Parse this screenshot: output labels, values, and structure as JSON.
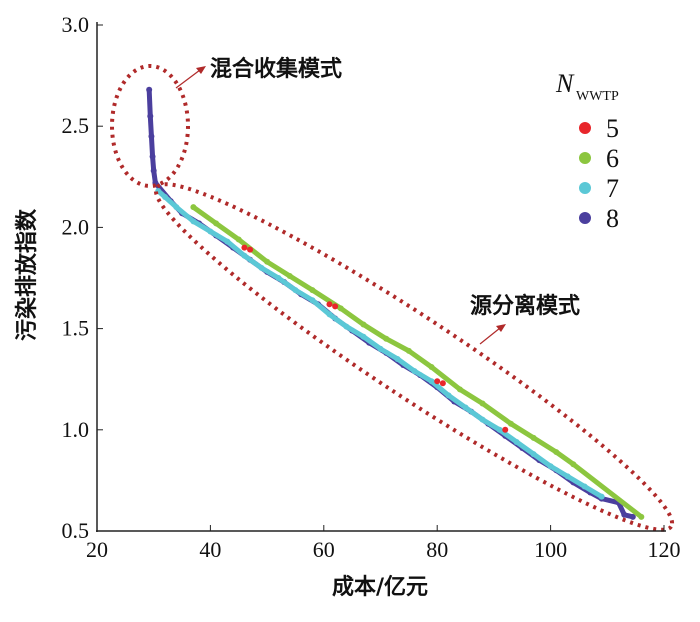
{
  "chart_data": {
    "type": "scatter",
    "title": "",
    "xlabel": "成本/亿元",
    "ylabel": "污染排放指数",
    "xlim": [
      20,
      120
    ],
    "ylim": [
      0.5,
      3.0
    ],
    "xticks": [
      "20",
      "40",
      "60",
      "80",
      "100",
      "120"
    ],
    "yticks": [
      "0.5",
      "1.0",
      "1.5",
      "2.0",
      "2.5",
      "3.0"
    ],
    "legend": {
      "title": "N",
      "title_sub": "WWTP",
      "placement": "top-right"
    },
    "annotations": [
      "混合收集模式",
      "源分离模式"
    ],
    "series": [
      {
        "name": "8",
        "color": "#4b3f9e",
        "points": [
          [
            29.2,
            2.68
          ],
          [
            29.4,
            2.55
          ],
          [
            29.6,
            2.45
          ],
          [
            29.8,
            2.35
          ],
          [
            30,
            2.28
          ],
          [
            30.3,
            2.22
          ],
          [
            33,
            2.13
          ],
          [
            35,
            2.07
          ],
          [
            38,
            2.02
          ],
          [
            41,
            1.96
          ],
          [
            44,
            1.9
          ],
          [
            47,
            1.84
          ],
          [
            50,
            1.78
          ],
          [
            53,
            1.73
          ],
          [
            56,
            1.67
          ],
          [
            59,
            1.62
          ],
          [
            62,
            1.55
          ],
          [
            65,
            1.49
          ],
          [
            68,
            1.43
          ],
          [
            71,
            1.38
          ],
          [
            74,
            1.32
          ],
          [
            77,
            1.27
          ],
          [
            80,
            1.21
          ],
          [
            83,
            1.14
          ],
          [
            86,
            1.09
          ],
          [
            89,
            1.03
          ],
          [
            92,
            0.97
          ],
          [
            95,
            0.91
          ],
          [
            98,
            0.85
          ],
          [
            101,
            0.8
          ],
          [
            104,
            0.74
          ],
          [
            107,
            0.69
          ],
          [
            109,
            0.66
          ],
          [
            112,
            0.64
          ],
          [
            113,
            0.58
          ],
          [
            114.5,
            0.57
          ]
        ]
      },
      {
        "name": "7",
        "color": "#5bc8d6",
        "points": [
          [
            30.8,
            2.18
          ],
          [
            32,
            2.15
          ],
          [
            34,
            2.1
          ],
          [
            37,
            2.03
          ],
          [
            40,
            1.98
          ],
          [
            43,
            1.93
          ],
          [
            46,
            1.86
          ],
          [
            49,
            1.8
          ],
          [
            52,
            1.75
          ],
          [
            55,
            1.69
          ],
          [
            58,
            1.64
          ],
          [
            61,
            1.57
          ],
          [
            64,
            1.51
          ],
          [
            67,
            1.46
          ],
          [
            70,
            1.4
          ],
          [
            73,
            1.35
          ],
          [
            76,
            1.29
          ],
          [
            79,
            1.24
          ],
          [
            82,
            1.17
          ],
          [
            85,
            1.11
          ],
          [
            88,
            1.05
          ],
          [
            91,
            1.0
          ],
          [
            94,
            0.94
          ],
          [
            97,
            0.88
          ],
          [
            100,
            0.82
          ],
          [
            103,
            0.77
          ],
          [
            106,
            0.72
          ],
          [
            109,
            0.67
          ]
        ]
      },
      {
        "name": "6",
        "color": "#8cc63f",
        "points": [
          [
            37,
            2.1
          ],
          [
            41,
            2.02
          ],
          [
            45,
            1.94
          ],
          [
            50,
            1.83
          ],
          [
            54,
            1.76
          ],
          [
            58,
            1.69
          ],
          [
            63,
            1.6
          ],
          [
            67,
            1.52
          ],
          [
            71,
            1.45
          ],
          [
            75,
            1.39
          ],
          [
            79,
            1.31
          ],
          [
            84,
            1.2
          ],
          [
            88,
            1.13
          ],
          [
            93,
            1.03
          ],
          [
            97,
            0.96
          ],
          [
            101,
            0.89
          ],
          [
            104,
            0.83
          ],
          [
            116,
            0.57
          ]
        ]
      },
      {
        "name": "5",
        "color": "#e8262b",
        "points": [
          [
            46,
            1.9
          ],
          [
            47,
            1.89
          ],
          [
            61,
            1.62
          ],
          [
            62,
            1.61
          ],
          [
            80,
            1.24
          ],
          [
            81,
            1.23
          ],
          [
            92,
            1.0
          ]
        ]
      }
    ]
  }
}
